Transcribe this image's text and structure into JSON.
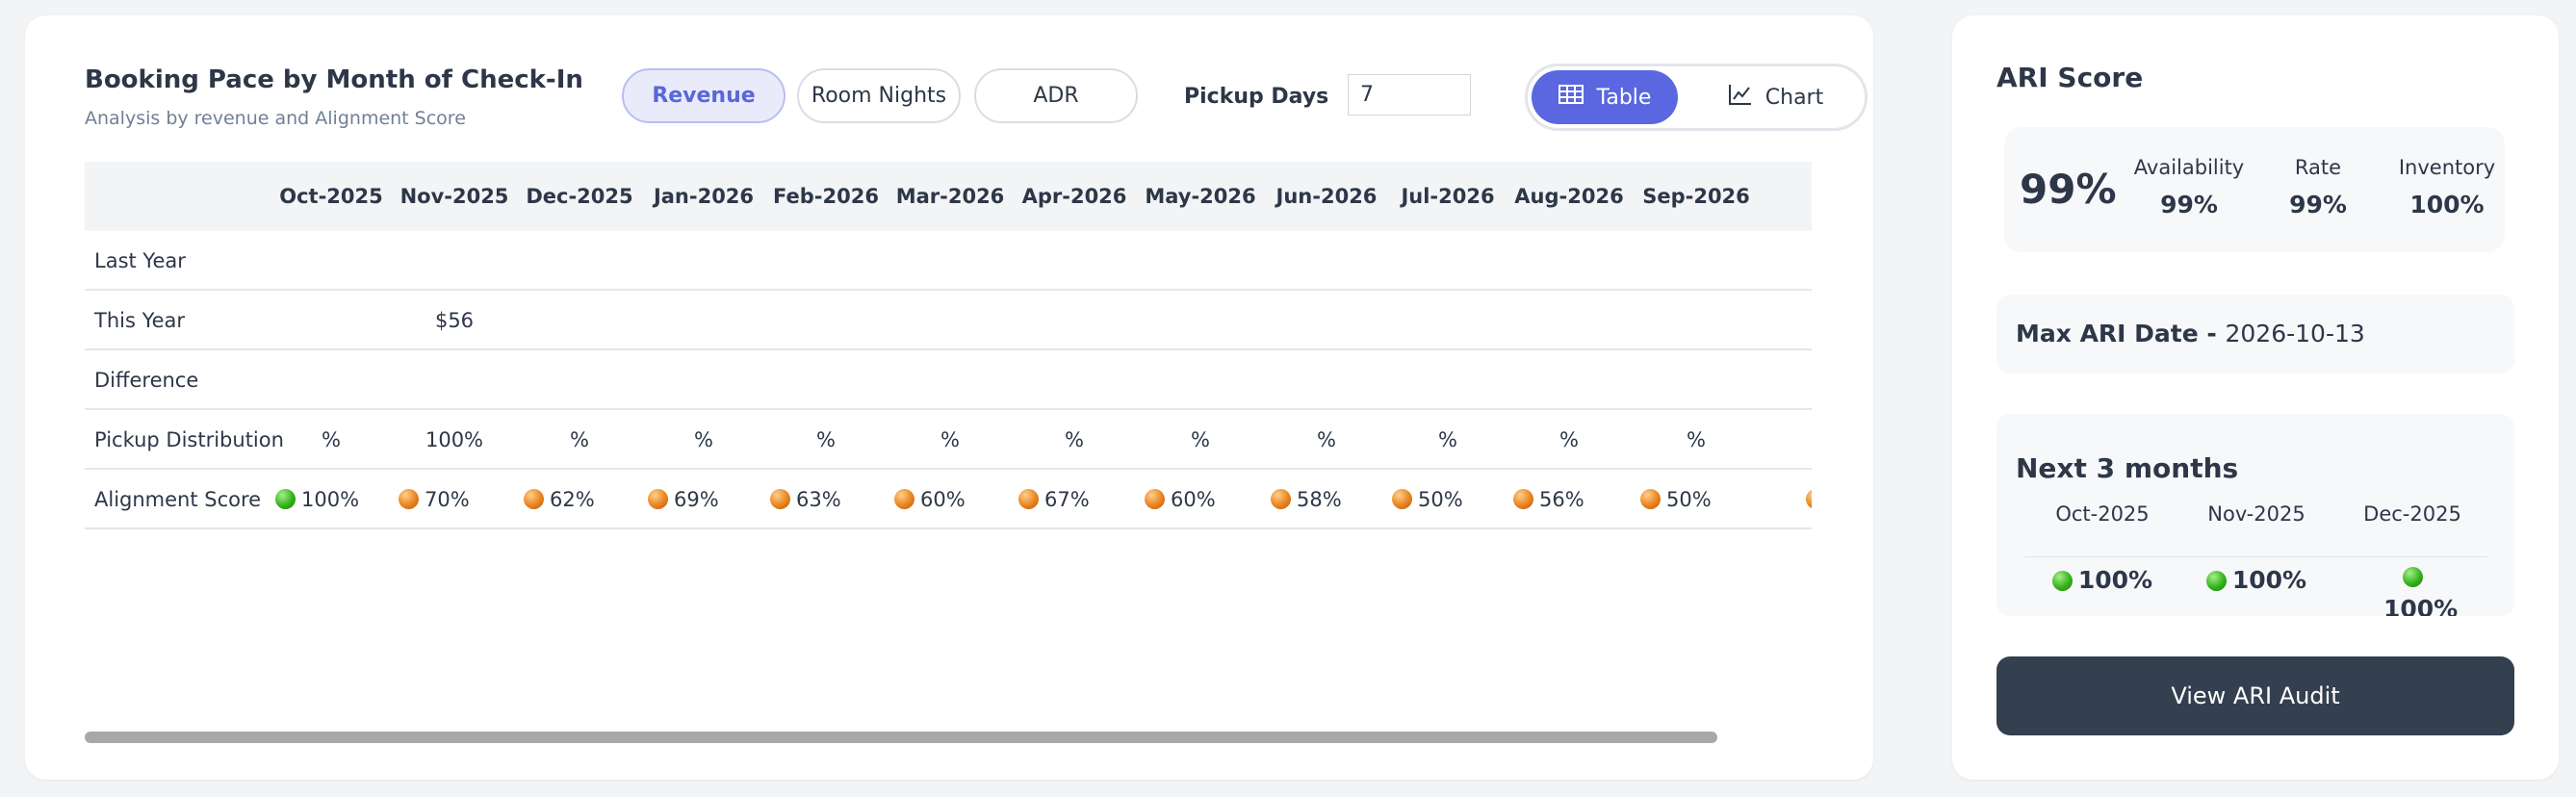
{
  "header": {
    "title": "Booking Pace by Month of Check-In",
    "subtitle": "Analysis by revenue and Alignment Score"
  },
  "metric_tabs": [
    {
      "label": "Revenue",
      "active": true
    },
    {
      "label": "Room Nights",
      "active": false
    },
    {
      "label": "ADR",
      "active": false
    }
  ],
  "pickup": {
    "label": "Pickup Days",
    "value": "7"
  },
  "view_toggle": {
    "table": {
      "label": "Table",
      "icon": "table-icon",
      "active": true
    },
    "chart": {
      "label": "Chart",
      "icon": "line-chart-icon",
      "active": false
    }
  },
  "table": {
    "months": [
      "Oct-2025",
      "Nov-2025",
      "Dec-2025",
      "Jan-2026",
      "Feb-2026",
      "Mar-2026",
      "Apr-2026",
      "May-2026",
      "Jun-2026",
      "Jul-2026",
      "Aug-2026",
      "Sep-2026"
    ],
    "rows": [
      {
        "label": "Last Year",
        "values": [
          "",
          "",
          "",
          "",
          "",
          "",
          "",
          "",
          "",
          "",
          "",
          ""
        ]
      },
      {
        "label": "This Year",
        "values": [
          "",
          "$56",
          "",
          "",
          "",
          "",
          "",
          "",
          "",
          "",
          "",
          ""
        ]
      },
      {
        "label": "Difference",
        "values": [
          "",
          "",
          "",
          "",
          "",
          "",
          "",
          "",
          "",
          "",
          "",
          ""
        ]
      },
      {
        "label": "Pickup Distribution",
        "values": [
          "%",
          "100%",
          "%",
          "%",
          "%",
          "%",
          "%",
          "%",
          "%",
          "%",
          "%",
          "%"
        ]
      }
    ],
    "alignment": {
      "label": "Alignment Score",
      "scores": [
        {
          "value": "100%",
          "status": "green"
        },
        {
          "value": "70%",
          "status": "orange"
        },
        {
          "value": "62%",
          "status": "orange"
        },
        {
          "value": "69%",
          "status": "orange"
        },
        {
          "value": "63%",
          "status": "orange"
        },
        {
          "value": "60%",
          "status": "orange"
        },
        {
          "value": "67%",
          "status": "orange"
        },
        {
          "value": "60%",
          "status": "orange"
        },
        {
          "value": "58%",
          "status": "orange"
        },
        {
          "value": "50%",
          "status": "orange"
        },
        {
          "value": "56%",
          "status": "orange"
        },
        {
          "value": "50%",
          "status": "orange"
        }
      ]
    }
  },
  "ari": {
    "title": "ARI Score",
    "total": "99%",
    "metrics": [
      {
        "label": "Availability",
        "value": "99%"
      },
      {
        "label": "Rate",
        "value": "99%"
      },
      {
        "label": "Inventory",
        "value": "100%"
      }
    ],
    "max_date_label": "Max ARI Date - ",
    "max_date_value": "2026-10-13",
    "next_title": "Next 3 months",
    "next_months": [
      {
        "month": "Oct-2025",
        "value": "100%",
        "status": "green"
      },
      {
        "month": "Nov-2025",
        "value": "100%",
        "status": "green"
      },
      {
        "month": "Dec-2025",
        "value": "100%",
        "status": "green"
      }
    ],
    "audit_button": "View ARI Audit"
  },
  "colors": {
    "accent": "#5a67e0",
    "good": "#34b21d",
    "warn": "#e8831f",
    "dark_button": "#343f4f"
  }
}
